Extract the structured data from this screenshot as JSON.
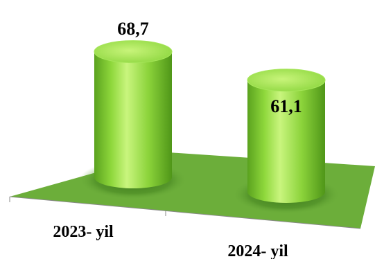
{
  "chart_data": {
    "type": "bar",
    "style": "3d-cylinder",
    "categories": [
      "2023- yil",
      "2024- yil"
    ],
    "values": [
      68.7,
      61.1
    ],
    "value_labels": [
      "68,7",
      "61,1"
    ],
    "title": "",
    "xlabel": "",
    "ylabel": "",
    "grid": false,
    "legend": "none"
  },
  "colors": {
    "floor": "#6cae3a",
    "bar_top": "#b4f05a",
    "bar_body": "#8fd83c",
    "bar_dark": "#5aa21e"
  }
}
